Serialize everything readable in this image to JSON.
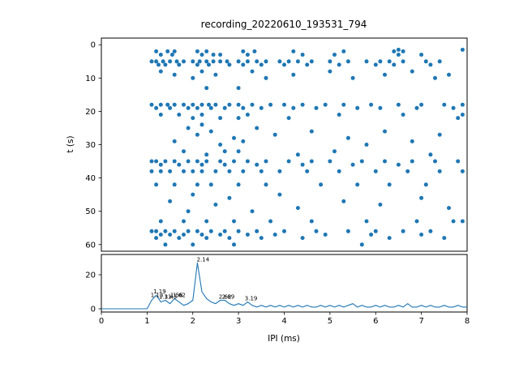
{
  "figure": {
    "background": "#ffffff",
    "accent_color": "#1f77b4",
    "spine_color": "#000000"
  },
  "chart_data": [
    {
      "type": "scatter",
      "title": "recording_20220610_193531_794",
      "xlabel": "",
      "ylabel": "t (s)",
      "xlim": [
        0,
        8
      ],
      "ylim": [
        -2,
        62
      ],
      "y_inverted": true,
      "yticks": [
        0,
        10,
        20,
        30,
        40,
        50,
        60
      ],
      "grid": false,
      "marker_color": "#1f77b4",
      "points": [
        [
          1.2,
          2
        ],
        [
          1.45,
          2
        ],
        [
          1.6,
          2
        ],
        [
          2.1,
          2
        ],
        [
          2.3,
          2
        ],
        [
          3.1,
          2
        ],
        [
          3.35,
          2
        ],
        [
          4.2,
          2
        ],
        [
          5.3,
          2
        ],
        [
          6.4,
          2
        ],
        [
          6.6,
          2
        ],
        [
          7.9,
          1.5
        ],
        [
          6.5,
          1.5
        ],
        [
          1.3,
          3
        ],
        [
          1.55,
          3
        ],
        [
          2.2,
          3
        ],
        [
          2.45,
          3
        ],
        [
          2.6,
          3
        ],
        [
          3.2,
          3
        ],
        [
          4.4,
          3
        ],
        [
          5.1,
          3
        ],
        [
          6.5,
          3
        ],
        [
          7.0,
          3
        ],
        [
          1.1,
          5
        ],
        [
          1.2,
          5
        ],
        [
          1.35,
          5
        ],
        [
          1.5,
          5
        ],
        [
          1.65,
          5
        ],
        [
          1.8,
          5
        ],
        [
          2.0,
          5
        ],
        [
          2.15,
          5
        ],
        [
          2.3,
          5
        ],
        [
          2.45,
          5
        ],
        [
          2.6,
          5
        ],
        [
          2.75,
          5
        ],
        [
          3.0,
          5
        ],
        [
          3.2,
          5
        ],
        [
          3.4,
          5
        ],
        [
          3.6,
          5
        ],
        [
          3.9,
          5
        ],
        [
          4.1,
          5
        ],
        [
          4.3,
          5
        ],
        [
          4.6,
          5
        ],
        [
          5.0,
          5
        ],
        [
          5.4,
          5
        ],
        [
          5.8,
          5
        ],
        [
          6.1,
          5
        ],
        [
          6.3,
          5
        ],
        [
          6.6,
          5
        ],
        [
          7.1,
          5
        ],
        [
          7.4,
          5
        ],
        [
          1.25,
          6
        ],
        [
          1.4,
          6
        ],
        [
          1.7,
          6
        ],
        [
          2.1,
          6
        ],
        [
          2.35,
          6
        ],
        [
          2.8,
          6
        ],
        [
          3.1,
          6
        ],
        [
          3.5,
          6
        ],
        [
          4.0,
          6
        ],
        [
          4.5,
          6
        ],
        [
          5.2,
          6
        ],
        [
          6.0,
          6
        ],
        [
          6.4,
          6
        ],
        [
          7.2,
          6
        ],
        [
          1.3,
          8
        ],
        [
          1.6,
          9
        ],
        [
          2.2,
          8
        ],
        [
          2.5,
          9
        ],
        [
          3.3,
          8
        ],
        [
          3.6,
          10
        ],
        [
          4.2,
          9
        ],
        [
          5.0,
          8
        ],
        [
          5.5,
          10
        ],
        [
          6.2,
          9
        ],
        [
          6.8,
          8
        ],
        [
          7.3,
          10
        ],
        [
          7.6,
          9
        ],
        [
          2.0,
          10
        ],
        [
          2.3,
          13
        ],
        [
          3.0,
          13
        ],
        [
          1.1,
          18
        ],
        [
          1.3,
          18
        ],
        [
          1.45,
          18
        ],
        [
          1.6,
          18
        ],
        [
          1.8,
          18
        ],
        [
          2.0,
          18
        ],
        [
          2.2,
          18
        ],
        [
          2.35,
          18
        ],
        [
          2.5,
          18
        ],
        [
          2.8,
          18
        ],
        [
          3.0,
          18
        ],
        [
          3.3,
          18
        ],
        [
          3.7,
          18
        ],
        [
          4.0,
          18
        ],
        [
          4.4,
          18
        ],
        [
          4.9,
          18
        ],
        [
          5.3,
          18
        ],
        [
          5.9,
          18
        ],
        [
          6.5,
          18
        ],
        [
          7.0,
          18
        ],
        [
          7.5,
          18
        ],
        [
          7.9,
          18
        ],
        [
          1.2,
          19
        ],
        [
          1.5,
          19
        ],
        [
          1.9,
          19
        ],
        [
          2.1,
          19
        ],
        [
          2.4,
          19
        ],
        [
          2.7,
          19
        ],
        [
          3.1,
          19
        ],
        [
          3.5,
          19
        ],
        [
          4.2,
          19
        ],
        [
          4.7,
          19
        ],
        [
          5.6,
          19
        ],
        [
          6.1,
          19
        ],
        [
          6.9,
          19
        ],
        [
          7.7,
          19
        ],
        [
          1.3,
          21
        ],
        [
          1.7,
          21
        ],
        [
          2.2,
          21
        ],
        [
          3.2,
          21
        ],
        [
          5.2,
          21
        ],
        [
          6.6,
          21
        ],
        [
          7.9,
          21
        ],
        [
          2.6,
          22
        ],
        [
          4.1,
          22
        ],
        [
          7.8,
          22
        ],
        [
          2.0,
          22
        ],
        [
          3.0,
          22
        ],
        [
          2.2,
          24
        ],
        [
          1.9,
          25
        ],
        [
          3.4,
          25
        ],
        [
          2.4,
          26
        ],
        [
          4.6,
          26
        ],
        [
          6.2,
          26
        ],
        [
          2.1,
          27
        ],
        [
          3.8,
          27
        ],
        [
          7.4,
          27
        ],
        [
          2.9,
          28
        ],
        [
          5.4,
          28
        ],
        [
          1.6,
          29
        ],
        [
          3.1,
          29
        ],
        [
          6.8,
          29
        ],
        [
          2.6,
          30
        ],
        [
          5.8,
          30
        ],
        [
          1.8,
          32
        ],
        [
          3.0,
          32
        ],
        [
          5.1,
          32
        ],
        [
          2.7,
          32
        ],
        [
          2.3,
          33
        ],
        [
          4.3,
          33
        ],
        [
          7.2,
          33
        ],
        [
          1.1,
          35
        ],
        [
          1.2,
          35
        ],
        [
          1.4,
          35
        ],
        [
          1.6,
          35
        ],
        [
          1.9,
          35
        ],
        [
          2.1,
          35
        ],
        [
          2.3,
          35
        ],
        [
          2.6,
          35
        ],
        [
          2.9,
          35
        ],
        [
          3.2,
          35
        ],
        [
          3.6,
          35
        ],
        [
          4.1,
          35
        ],
        [
          4.6,
          35
        ],
        [
          5.0,
          35
        ],
        [
          5.7,
          35
        ],
        [
          6.2,
          35
        ],
        [
          6.8,
          35
        ],
        [
          7.3,
          35
        ],
        [
          7.8,
          35
        ],
        [
          1.3,
          36
        ],
        [
          1.7,
          36
        ],
        [
          2.2,
          36
        ],
        [
          2.7,
          36
        ],
        [
          3.4,
          36
        ],
        [
          4.4,
          36
        ],
        [
          5.5,
          36
        ],
        [
          6.5,
          36
        ],
        [
          1.1,
          38
        ],
        [
          1.3,
          38
        ],
        [
          1.5,
          38
        ],
        [
          1.8,
          38
        ],
        [
          2.0,
          38
        ],
        [
          2.2,
          38
        ],
        [
          2.5,
          38
        ],
        [
          2.8,
          38
        ],
        [
          3.1,
          38
        ],
        [
          3.5,
          38
        ],
        [
          3.9,
          38
        ],
        [
          4.5,
          38
        ],
        [
          5.2,
          38
        ],
        [
          6.0,
          38
        ],
        [
          6.7,
          38
        ],
        [
          7.4,
          38
        ],
        [
          7.9,
          38
        ],
        [
          1.2,
          42
        ],
        [
          1.6,
          42
        ],
        [
          2.1,
          42
        ],
        [
          2.4,
          42
        ],
        [
          3.0,
          42
        ],
        [
          3.6,
          42
        ],
        [
          4.8,
          42
        ],
        [
          5.6,
          42
        ],
        [
          6.3,
          42
        ],
        [
          7.1,
          42
        ],
        [
          2.0,
          45
        ],
        [
          3.9,
          45
        ],
        [
          2.8,
          46
        ],
        [
          7.0,
          46
        ],
        [
          1.5,
          47
        ],
        [
          5.3,
          47
        ],
        [
          2.5,
          48
        ],
        [
          6.1,
          48
        ],
        [
          4.3,
          49
        ],
        [
          7.6,
          49
        ],
        [
          3.3,
          50
        ],
        [
          1.9,
          50
        ],
        [
          1.3,
          53
        ],
        [
          1.8,
          53
        ],
        [
          2.3,
          53
        ],
        [
          2.9,
          53
        ],
        [
          3.7,
          53
        ],
        [
          4.6,
          53
        ],
        [
          5.8,
          53
        ],
        [
          6.9,
          53
        ],
        [
          7.7,
          53
        ],
        [
          7.9,
          53
        ],
        [
          1.1,
          56
        ],
        [
          1.2,
          56
        ],
        [
          1.4,
          56
        ],
        [
          1.6,
          56
        ],
        [
          1.9,
          56
        ],
        [
          2.1,
          56
        ],
        [
          2.4,
          56
        ],
        [
          2.7,
          56
        ],
        [
          3.0,
          56
        ],
        [
          3.4,
          56
        ],
        [
          4.0,
          56
        ],
        [
          4.7,
          56
        ],
        [
          5.4,
          56
        ],
        [
          6.0,
          56
        ],
        [
          6.6,
          56
        ],
        [
          7.2,
          56
        ],
        [
          1.3,
          57
        ],
        [
          1.5,
          57
        ],
        [
          1.8,
          57
        ],
        [
          2.2,
          57
        ],
        [
          2.6,
          57
        ],
        [
          3.2,
          57
        ],
        [
          3.8,
          57
        ],
        [
          4.9,
          57
        ],
        [
          5.9,
          57
        ],
        [
          7.0,
          57
        ],
        [
          1.2,
          58
        ],
        [
          1.7,
          58
        ],
        [
          2.3,
          58
        ],
        [
          2.8,
          58
        ],
        [
          3.5,
          58
        ],
        [
          4.4,
          58
        ],
        [
          6.3,
          58
        ],
        [
          7.5,
          58
        ],
        [
          1.4,
          60
        ],
        [
          2.0,
          60
        ],
        [
          2.9,
          60
        ],
        [
          5.7,
          60
        ]
      ]
    },
    {
      "type": "line",
      "title": "",
      "xlabel": "IPI (ms)",
      "ylabel": "",
      "xlim": [
        0,
        8
      ],
      "ylim": [
        0,
        30
      ],
      "xticks": [
        0,
        1,
        2,
        3,
        4,
        5,
        6,
        7,
        8
      ],
      "yticks": [
        0,
        20
      ],
      "grid": false,
      "line_color": "#1f77b4",
      "x": [
        0,
        0.1,
        0.2,
        0.3,
        0.4,
        0.5,
        0.6,
        0.7,
        0.8,
        0.9,
        1,
        1.1,
        1.2,
        1.3,
        1.4,
        1.5,
        1.6,
        1.7,
        1.8,
        1.9,
        2,
        2.1,
        2.2,
        2.3,
        2.4,
        2.5,
        2.6,
        2.7,
        2.8,
        2.9,
        3,
        3.1,
        3.2,
        3.3,
        3.4,
        3.5,
        3.6,
        3.7,
        3.8,
        3.9,
        4,
        4.1,
        4.2,
        4.3,
        4.4,
        4.5,
        4.6,
        4.7,
        4.8,
        4.9,
        5,
        5.1,
        5.2,
        5.3,
        5.4,
        5.5,
        5.6,
        5.7,
        5.8,
        5.9,
        6,
        6.1,
        6.2,
        6.3,
        6.4,
        6.5,
        6.6,
        6.7,
        6.8,
        6.9,
        7,
        7.1,
        7.2,
        7.3,
        7.4,
        7.5,
        7.6,
        7.7,
        7.8,
        7.9,
        8
      ],
      "y": [
        0,
        0,
        0,
        0,
        0,
        0,
        0,
        0,
        0,
        0,
        0,
        5,
        8,
        4,
        5,
        3,
        6,
        4,
        2,
        3,
        5,
        27,
        10,
        6,
        4,
        3,
        5,
        5,
        3,
        2,
        3,
        2,
        4,
        2,
        1,
        2,
        1,
        2,
        1,
        2,
        1,
        2,
        1,
        2,
        1,
        2,
        1,
        1,
        2,
        1,
        2,
        1,
        2,
        1,
        2,
        3,
        1,
        2,
        1,
        1,
        2,
        1,
        2,
        1,
        1,
        2,
        1,
        3,
        1,
        1,
        2,
        1,
        2,
        1,
        1,
        2,
        1,
        1,
        2,
        1,
        1
      ],
      "annotations": [
        {
          "x": 1.13,
          "y": 6,
          "label": "1.13"
        },
        {
          "x": 1.19,
          "y": 8,
          "label": "1.19"
        },
        {
          "x": 1.31,
          "y": 5,
          "label": "1.31"
        },
        {
          "x": 1.43,
          "y": 5,
          "label": "1.43"
        },
        {
          "x": 1.56,
          "y": 6,
          "label": "1.56"
        },
        {
          "x": 1.62,
          "y": 6,
          "label": "1.62"
        },
        {
          "x": 2.14,
          "y": 27,
          "label": "2.14"
        },
        {
          "x": 2.62,
          "y": 5,
          "label": "2.62"
        },
        {
          "x": 2.69,
          "y": 5,
          "label": "2.69"
        },
        {
          "x": 3.19,
          "y": 4,
          "label": "3.19"
        }
      ]
    }
  ]
}
